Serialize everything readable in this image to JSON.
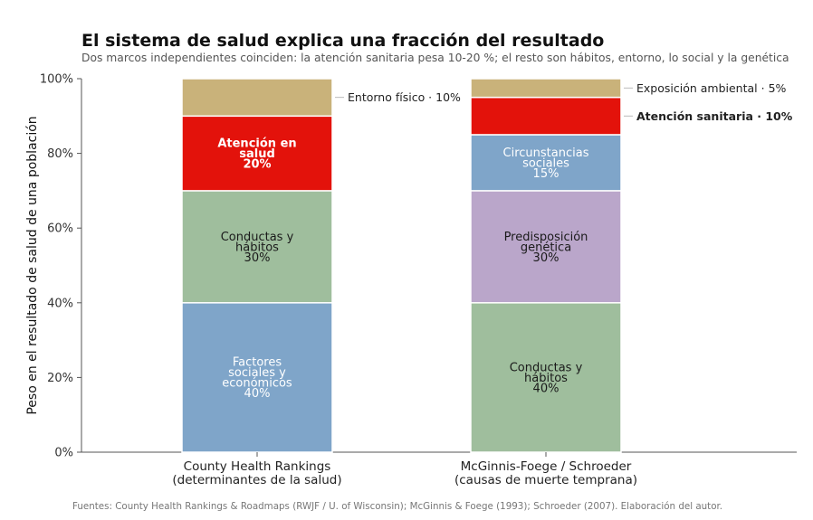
{
  "header": {
    "title": "El sistema de salud explica una fracción del resultado",
    "subtitle": "Dos marcos independientes coinciden: la atención sanitaria pesa 10-20 %; el resto son hábitos, entorno, lo social y la genética"
  },
  "footer": {
    "source": "Fuentes: County Health Rankings & Roadmaps (RWJF / U. of Wisconsin); McGinnis & Foege (1993); Schroeder (2007). Elaboración del autor."
  },
  "chart_data": {
    "type": "bar",
    "stacked": true,
    "ylabel": "Peso en el resultado de salud de una población",
    "ylim": [
      0,
      100
    ],
    "yticks": [
      "0%",
      "20%",
      "40%",
      "60%",
      "80%",
      "100%"
    ],
    "grid": false,
    "bars": [
      {
        "category_lines": [
          "County Health Rankings",
          "(determinantes de la salud)"
        ],
        "segments": [
          {
            "value": 40,
            "color": "#7fa5c9",
            "text_color": "#ffffff",
            "bold": false,
            "label_lines": [
              "Factores",
              "sociales y",
              "económicos",
              "40%"
            ],
            "callout": ""
          },
          {
            "value": 30,
            "color": "#9fbe9d",
            "text_color": "#1a1a1a",
            "bold": false,
            "label_lines": [
              "Conductas y",
              "hábitos",
              "30%"
            ],
            "callout": ""
          },
          {
            "value": 20,
            "color": "#e3120b",
            "text_color": "#ffffff",
            "bold": true,
            "label_lines": [
              "Atención en",
              "salud",
              "20%"
            ],
            "callout": ""
          },
          {
            "value": 10,
            "color": "#c9b27a",
            "text_color": "#1a1a1a",
            "bold": false,
            "label_lines": [],
            "callout": "Entorno físico · 10%",
            "callout_bold": false
          }
        ]
      },
      {
        "category_lines": [
          "McGinnis-Foege / Schroeder",
          "(causas de muerte temprana)"
        ],
        "segments": [
          {
            "value": 40,
            "color": "#9fbe9d",
            "text_color": "#1a1a1a",
            "bold": false,
            "label_lines": [
              "Conductas y",
              "hábitos",
              "40%"
            ],
            "callout": ""
          },
          {
            "value": 30,
            "color": "#baa6ca",
            "text_color": "#1a1a1a",
            "bold": false,
            "label_lines": [
              "Predisposición",
              "genética",
              "30%"
            ],
            "callout": ""
          },
          {
            "value": 15,
            "color": "#7fa5c9",
            "text_color": "#ffffff",
            "bold": false,
            "label_lines": [
              "Circunstancias",
              "sociales",
              "15%"
            ],
            "callout": ""
          },
          {
            "value": 10,
            "color": "#e3120b",
            "text_color": "#ffffff",
            "bold": false,
            "label_lines": [],
            "callout": "Atención sanitaria · 10%",
            "callout_bold": true
          },
          {
            "value": 5,
            "color": "#c9b27a",
            "text_color": "#1a1a1a",
            "bold": false,
            "label_lines": [],
            "callout": "Exposición ambiental · 5%",
            "callout_bold": false
          }
        ]
      }
    ]
  }
}
